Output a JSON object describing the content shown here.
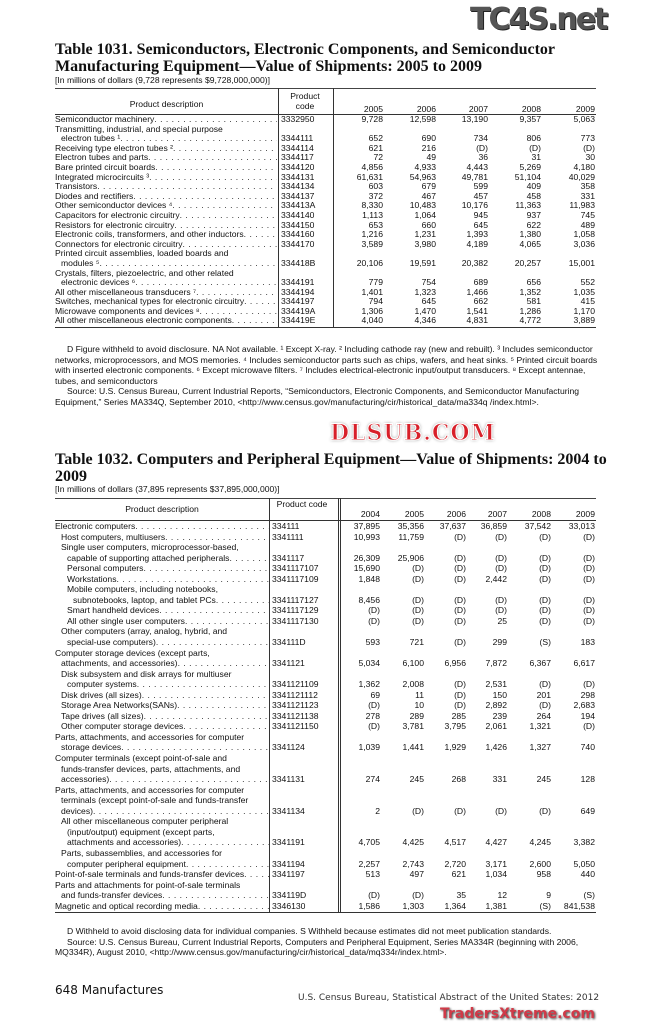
{
  "watermarks": {
    "top": "TC4S.net",
    "middle": "DLSUB.COM",
    "bottom": "TradersXtreme.com"
  },
  "table1": {
    "title": "Table 1031. Semiconductors, Electronic Components, and Semiconductor Manufacturing Equipment—Value of Shipments: 2005 to 2009",
    "subtitle": "[In millions of dollars (9,728 represents $9,728,000,000)]",
    "headers": {
      "desc": "Product description",
      "code": "Product code",
      "years": [
        "2005",
        "2006",
        "2007",
        "2008",
        "2009"
      ]
    },
    "rows": [
      {
        "desc": [
          "Semiconductor machinery"
        ],
        "level": 0,
        "code": "3332950",
        "values": [
          "9,728",
          "12,598",
          "13,190",
          "9,357",
          "5,063"
        ]
      },
      {
        "desc": [
          "Transmitting, industrial, and special purpose",
          "electron tubes ¹"
        ],
        "level": 0,
        "code": "3344111",
        "values": [
          "652",
          "690",
          "734",
          "806",
          "773"
        ]
      },
      {
        "desc": [
          "Receiving type electron tubes ²"
        ],
        "level": 0,
        "code": "3344114",
        "values": [
          "621",
          "216",
          "(D)",
          "(D)",
          "(D)"
        ]
      },
      {
        "desc": [
          "Electron tubes and parts"
        ],
        "level": 0,
        "code": "3344117",
        "values": [
          "72",
          "49",
          "36",
          "31",
          "30"
        ]
      },
      {
        "desc": [
          "Bare printed circuit boards"
        ],
        "level": 0,
        "code": "3344120",
        "values": [
          "4,856",
          "4,933",
          "4,443",
          "5,269",
          "4,180"
        ]
      },
      {
        "desc": [
          "Integrated microcircuits ³"
        ],
        "level": 0,
        "code": "3344131",
        "values": [
          "61,631",
          "54,963",
          "49,781",
          "51,104",
          "40,029"
        ]
      },
      {
        "desc": [
          "Transistors"
        ],
        "level": 0,
        "code": "3344134",
        "values": [
          "603",
          "679",
          "599",
          "409",
          "358"
        ]
      },
      {
        "desc": [
          "Diodes and rectifiers"
        ],
        "level": 0,
        "code": "3344137",
        "values": [
          "372",
          "467",
          "457",
          "458",
          "331"
        ]
      },
      {
        "desc": [
          "Other semiconductor devices ⁴"
        ],
        "level": 0,
        "code": "334413A",
        "values": [
          "8,330",
          "10,483",
          "10,176",
          "11,363",
          "11,983"
        ]
      },
      {
        "desc": [
          "Capacitors for electronic circuitry"
        ],
        "level": 0,
        "code": "3344140",
        "values": [
          "1,113",
          "1,064",
          "945",
          "937",
          "745"
        ]
      },
      {
        "desc": [
          "Resistors for electronic circuitry"
        ],
        "level": 0,
        "code": "3344150",
        "values": [
          "653",
          "660",
          "645",
          "622",
          "489"
        ]
      },
      {
        "desc": [
          "Electronic coils, transformers, and other inductors"
        ],
        "level": 0,
        "code": "3344160",
        "values": [
          "1,216",
          "1,231",
          "1,393",
          "1,380",
          "1,058"
        ]
      },
      {
        "desc": [
          "Connectors for electronic circuitry"
        ],
        "level": 0,
        "code": "3344170",
        "values": [
          "3,589",
          "3,980",
          "4,189",
          "4,065",
          "3,036"
        ]
      },
      {
        "desc": [
          "Printed circuit assemblies, loaded boards and",
          "modules ⁵"
        ],
        "level": 0,
        "code": "334418B",
        "values": [
          "20,106",
          "19,591",
          "20,382",
          "20,257",
          "15,001"
        ]
      },
      {
        "desc": [
          "Crystals, filters, piezoelectric, and other related",
          "electronic devices ⁶"
        ],
        "level": 0,
        "code": "3344191",
        "values": [
          "779",
          "754",
          "689",
          "656",
          "552"
        ]
      },
      {
        "desc": [
          "All other miscellaneous transducers ⁷"
        ],
        "level": 0,
        "code": "3344194",
        "values": [
          "1,401",
          "1,323",
          "1,466",
          "1,352",
          "1,035"
        ]
      },
      {
        "desc": [
          "Switches, mechanical types for electronic circuitry"
        ],
        "level": 0,
        "code": "3344197",
        "values": [
          "794",
          "645",
          "662",
          "581",
          "415"
        ]
      },
      {
        "desc": [
          "Microwave components and devices ⁸"
        ],
        "level": 0,
        "code": "334419A",
        "values": [
          "1,306",
          "1,470",
          "1,541",
          "1,286",
          "1,170"
        ]
      },
      {
        "desc": [
          "All other miscellaneous electronic components"
        ],
        "level": 0,
        "code": "334419E",
        "values": [
          "4,040",
          "4,346",
          "4,831",
          "4,772",
          "3,889"
        ]
      }
    ],
    "footnotes": "D Figure withheld to avoid disclosure. NA Not available. ¹ Except X-ray. ² Including cathode ray (new and rebuilt). ³ Includes semiconductor networks, microprocessors, and MOS memories. ⁴ Includes semiconductor parts such as chips, wafers, and heat sinks. ⁵ Printed circuit boards with inserted electronic components. ⁶ Except microwave filters. ⁷ Includes electrical-electronic input/output transducers. ⁸ Except antennae, tubes, and semiconductors",
    "source": "Source: U.S. Census Bureau, Current Industrial Reports, “Semiconductors, Electronic Components, and Semiconductor Manufacturing Equipment,” Series MA334Q, September 2010, <http://www.census.gov/manufacturing/cir/historical_data/ma334q /index.html>."
  },
  "table2": {
    "title": "Table 1032. Computers and Peripheral Equipment—Value of Shipments: 2004 to 2009",
    "subtitle": "[In millions of dollars (37,895 represents $37,895,000,000)]",
    "headers": {
      "desc": "Product description",
      "code": "Product code",
      "years": [
        "2004",
        "2005",
        "2006",
        "2007",
        "2008",
        "2009"
      ]
    },
    "rows": [
      {
        "desc": [
          "Electronic computers"
        ],
        "level": 0,
        "code": "334111",
        "values": [
          "37,895",
          "35,356",
          "37,637",
          "36,859",
          "37,542",
          "33,013"
        ]
      },
      {
        "desc": [
          "Host computers, multiusers"
        ],
        "level": 1,
        "code": "3341111",
        "values": [
          "10,993",
          "11,759",
          "(D)",
          "(D)",
          "(D)",
          "(D)"
        ]
      },
      {
        "desc": [
          "Single user computers, microprocessor-based,",
          "capable of supporting attached peripherals"
        ],
        "level": 1,
        "code": "3341117",
        "values": [
          "26,309",
          "25,906",
          "(D)",
          "(D)",
          "(D)",
          "(D)"
        ]
      },
      {
        "desc": [
          "Personal computers"
        ],
        "level": 2,
        "code": "3341117107",
        "values": [
          "15,690",
          "(D)",
          "(D)",
          "(D)",
          "(D)",
          "(D)"
        ]
      },
      {
        "desc": [
          "Workstations"
        ],
        "level": 2,
        "code": "3341117109",
        "values": [
          "1,848",
          "(D)",
          "(D)",
          "2,442",
          "(D)",
          "(D)"
        ]
      },
      {
        "desc": [
          "Mobile computers, including notebooks,",
          "subnotebooks, laptop, and tablet PCs"
        ],
        "level": 2,
        "code": "3341117127",
        "values": [
          "8,456",
          "(D)",
          "(D)",
          "(D)",
          "(D)",
          "(D)"
        ]
      },
      {
        "desc": [
          "Smart handheld devices"
        ],
        "level": 2,
        "code": "3341117129",
        "values": [
          "(D)",
          "(D)",
          "(D)",
          "(D)",
          "(D)",
          "(D)"
        ]
      },
      {
        "desc": [
          "All other single user computers"
        ],
        "level": 2,
        "code": "3341117130",
        "values": [
          "(D)",
          "(D)",
          "(D)",
          "25",
          "(D)",
          "(D)"
        ]
      },
      {
        "desc": [
          "Other computers (array, analog, hybrid, and",
          "special-use computers)"
        ],
        "level": 1,
        "code": "334111D",
        "values": [
          "593",
          "721",
          "(D)",
          "299",
          "(S)",
          "183"
        ]
      },
      {
        "desc": [
          "Computer storage devices (except parts,",
          "attachments, and accessories)"
        ],
        "level": 0,
        "code": "3341121",
        "values": [
          "5,034",
          "6,100",
          "6,956",
          "7,872",
          "6,367",
          "6,617"
        ]
      },
      {
        "desc": [
          "Disk subsystem and disk arrays for multiuser",
          "computer systems"
        ],
        "level": 1,
        "code": "3341121109",
        "values": [
          "1,362",
          "2,008",
          "(D)",
          "2,531",
          "(D)",
          "(D)"
        ]
      },
      {
        "desc": [
          "Disk drives (all sizes)"
        ],
        "level": 1,
        "code": "3341121112",
        "values": [
          "69",
          "11",
          "(D)",
          "150",
          "201",
          "298"
        ]
      },
      {
        "desc": [
          "Storage Area Networks(SANs)"
        ],
        "level": 1,
        "code": "3341121123",
        "values": [
          "(D)",
          "10",
          "(D)",
          "2,892",
          "(D)",
          "2,683"
        ]
      },
      {
        "desc": [
          "Tape drives (all sizes)"
        ],
        "level": 1,
        "code": "3341121138",
        "values": [
          "278",
          "289",
          "285",
          "239",
          "264",
          "194"
        ]
      },
      {
        "desc": [
          "Other computer storage devices"
        ],
        "level": 1,
        "code": "3341121150",
        "values": [
          "(D)",
          "3,781",
          "3,795",
          "2,061",
          "1,321",
          "(D)"
        ]
      },
      {
        "desc": [
          "Parts, attachments, and accessories for computer",
          "storage devices"
        ],
        "level": 0,
        "code": "3341124",
        "values": [
          "1,039",
          "1,441",
          "1,929",
          "1,426",
          "1,327",
          "740"
        ]
      },
      {
        "desc": [
          "Computer terminals (except point-of-sale and",
          "funds-transfer devices, parts, attachments, and",
          "accessories)"
        ],
        "level": 0,
        "code": "3341131",
        "values": [
          "274",
          "245",
          "268",
          "331",
          "245",
          "128"
        ]
      },
      {
        "desc": [
          "Parts, attachments, and accessories for computer",
          "terminals (except point-of-sale and funds-transfer",
          "devices)"
        ],
        "level": 0,
        "code": "3341134",
        "values": [
          "2",
          "(D)",
          "(D)",
          "(D)",
          "(D)",
          "649"
        ]
      },
      {
        "desc": [
          "All other miscellaneous computer peripheral",
          "(input/output) equipment (except parts,",
          "attachments and accessories)"
        ],
        "level": 1,
        "code": "3341191",
        "values": [
          "4,705",
          "4,425",
          "4,517",
          "4,427",
          "4,245",
          "3,382"
        ]
      },
      {
        "desc": [
          "Parts, subassemblies, and accessories for",
          "computer peripheral equipment"
        ],
        "level": 1,
        "code": "3341194",
        "values": [
          "2,257",
          "2,743",
          "2,720",
          "3,171",
          "2,600",
          "5,050"
        ]
      },
      {
        "desc": [
          "Point-of-sale terminals and funds-transfer devices"
        ],
        "level": 0,
        "code": "3341197",
        "values": [
          "513",
          "497",
          "621",
          "1,034",
          "958",
          "440"
        ]
      },
      {
        "desc": [
          "Parts and attachments for point-of-sale terminals",
          "and funds-transfer devices"
        ],
        "level": 0,
        "code": "334119D",
        "values": [
          "(D)",
          "(D)",
          "35",
          "12",
          "9",
          "(S)"
        ]
      },
      {
        "desc": [
          "Magnetic and optical recording media"
        ],
        "level": 0,
        "code": "3346130",
        "values": [
          "1,586",
          "1,303",
          "1,364",
          "1,381",
          "(S)",
          "841,538"
        ]
      }
    ],
    "footnotes": "D Withheld to avoid disclosing data for individual companies. S Withheld because estimates did not meet publication standards.",
    "source": "Source: U.S. Census Bureau, Current Industrial Reports, Computers and Peripheral Equipment, Series MA334R (beginning with 2006, MQ334R), August 2010, <http://www.census.gov/manufacturing/cir/historical_data/mq334r/index.html>."
  },
  "footer": {
    "page": "648  Manufactures",
    "credit": "U.S. Census Bureau, Statistical Abstract of the United States: 2012"
  }
}
